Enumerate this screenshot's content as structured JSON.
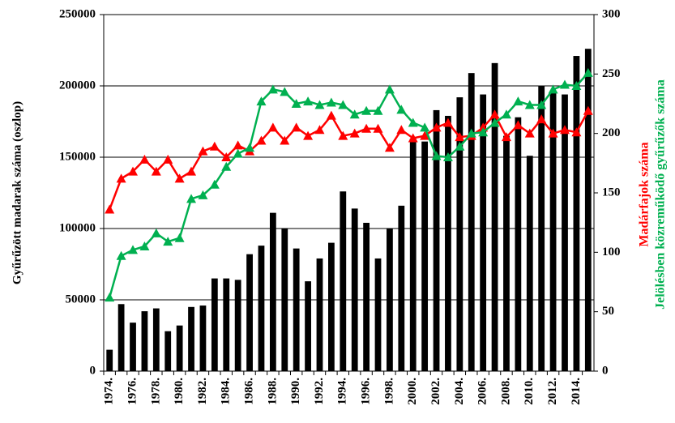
{
  "chart_data": {
    "type": "bar_line_combo",
    "y_label": "Gyűrűzött madarak száma (oszlop)",
    "categories": [
      "1974.",
      null,
      "1976.",
      null,
      "1978.",
      null,
      "1980.",
      null,
      "1982.",
      null,
      "1984.",
      null,
      "1986.",
      null,
      "1988.",
      null,
      "1990.",
      null,
      "1992.",
      null,
      "1994.",
      null,
      "1996.",
      null,
      "1998.",
      null,
      "2000.",
      null,
      "2002.",
      null,
      "2004.",
      null,
      "2006.",
      null,
      "2008.",
      null,
      "2010.",
      null,
      "2012.",
      null,
      "2014.",
      null
    ],
    "series": [
      {
        "type": "bar",
        "color": "#000000",
        "values": [
          15000,
          47000,
          34000,
          42000,
          44000,
          28000,
          32000,
          45000,
          46000,
          65000,
          65000,
          64000,
          82000,
          88000,
          111000,
          100000,
          86000,
          63000,
          79000,
          90000,
          126000,
          114000,
          104000,
          79000,
          100000,
          116000,
          163000,
          161000,
          183000,
          179000,
          192000,
          209000,
          194000,
          216000,
          165000,
          178000,
          151000,
          200000,
          195000,
          194000,
          221000,
          226000
        ]
      },
      {
        "type": "line",
        "axis": "y2",
        "name": "Madárfajok száma",
        "color": "#ff0000",
        "values": [
          136,
          162,
          168,
          178,
          168,
          178,
          162,
          168,
          185,
          189,
          180,
          190,
          185,
          194,
          205,
          194,
          205,
          198,
          203,
          215,
          198,
          200,
          204,
          204,
          188,
          203,
          196,
          198,
          205,
          209,
          197,
          198,
          205,
          216,
          197,
          207,
          200,
          212,
          200,
          203,
          201,
          219
        ]
      },
      {
        "type": "line",
        "axis": "y2",
        "name": "Jelölésben közreműködő gyűrűzők száma",
        "color": "#00b050",
        "values": [
          62,
          97,
          102,
          105,
          116,
          109,
          112,
          145,
          148,
          157,
          172,
          183,
          188,
          227,
          237,
          235,
          225,
          227,
          224,
          226,
          224,
          216,
          219,
          219,
          237,
          220,
          209,
          205,
          181,
          180,
          189,
          200,
          201,
          209,
          216,
          227,
          224,
          224,
          237,
          241,
          240,
          251
        ]
      }
    ],
    "ylim": [
      0,
      250000
    ],
    "yticks": [
      0,
      50000,
      100000,
      150000,
      200000,
      250000
    ],
    "y2lim": [
      0,
      300
    ],
    "y2ticks": [
      0,
      50,
      100,
      150,
      200,
      250,
      300
    ],
    "grid": true
  }
}
